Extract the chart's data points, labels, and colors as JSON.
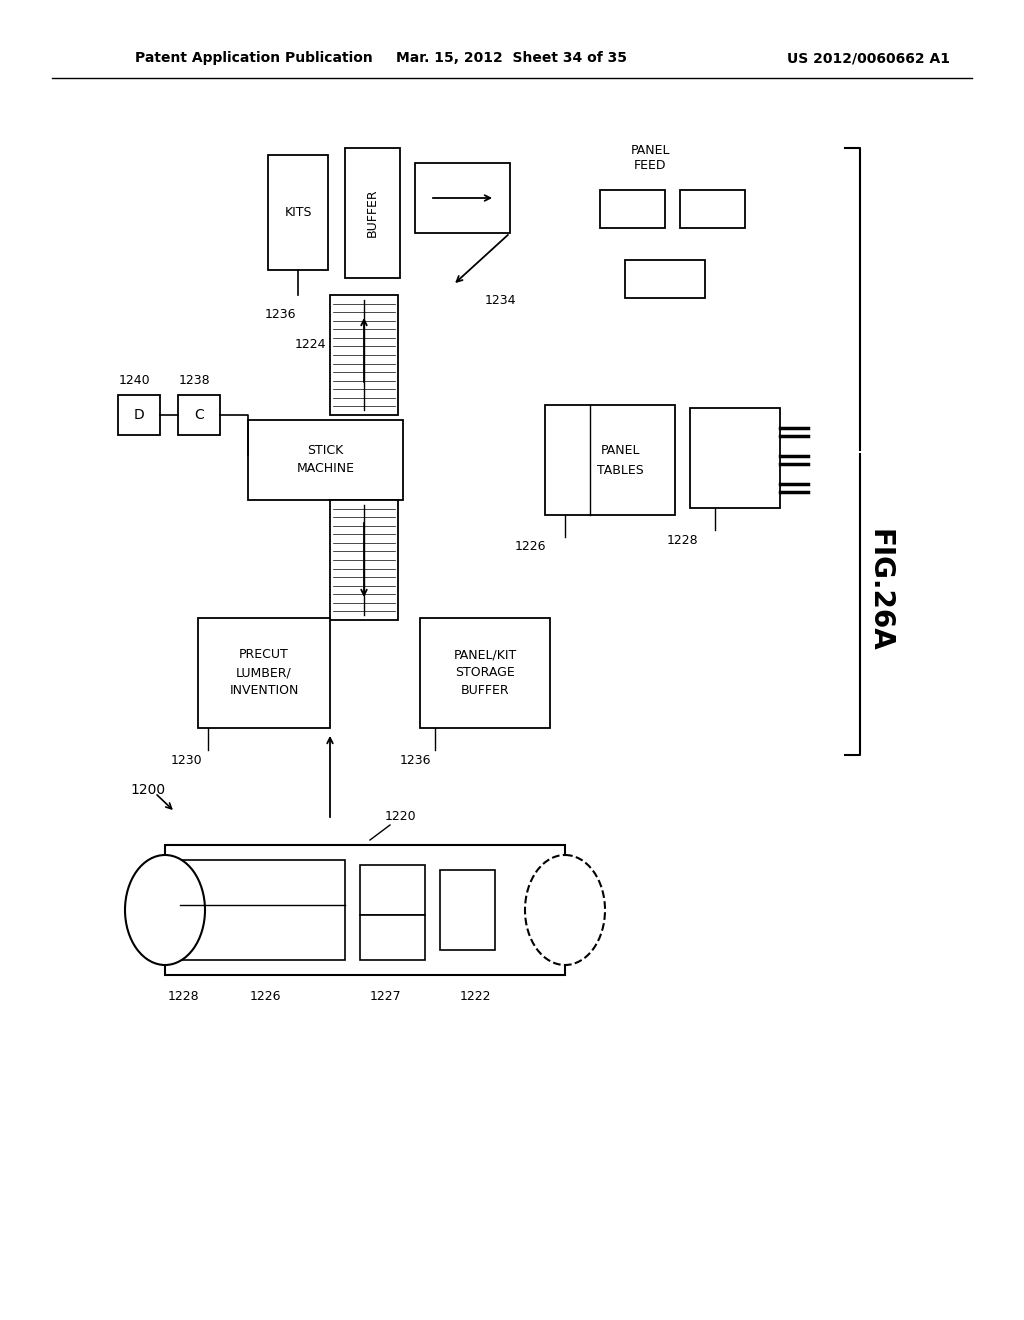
{
  "bg_color": "#ffffff",
  "header_left": "Patent Application Publication",
  "header_mid": "Mar. 15, 2012  Sheet 34 of 35",
  "header_right": "US 2012/0060662 A1"
}
